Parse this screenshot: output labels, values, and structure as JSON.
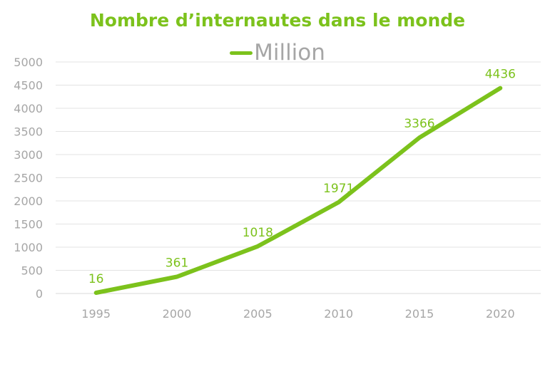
{
  "chart_data": {
    "type": "line",
    "title": "Nombre d’internautes dans le monde",
    "xlabel": "",
    "ylabel": "",
    "x": [
      "1995",
      "2000",
      "2005",
      "2010",
      "2015",
      "2020"
    ],
    "series": [
      {
        "name": "Million",
        "values": [
          16,
          361,
          1018,
          1971,
          3366,
          4436
        ]
      }
    ],
    "data_labels": [
      "16",
      "361",
      "1018",
      "1971",
      "3366",
      "4436"
    ],
    "yticks": [
      "0",
      "500",
      "1000",
      "1500",
      "2000",
      "2500",
      "3000",
      "3500",
      "4000",
      "4500",
      "5000"
    ],
    "ylim": [
      0,
      5000
    ],
    "grid": "horizontal",
    "legend_position": "top",
    "color": "#7cc21c"
  }
}
